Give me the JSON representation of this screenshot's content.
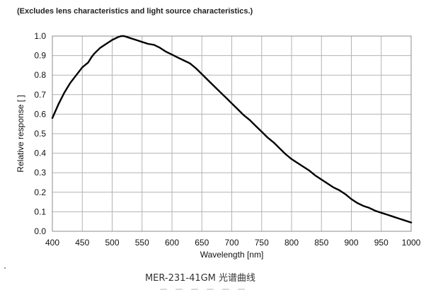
{
  "note": "(Excludes lens characteristics and light source characteristics.)",
  "caption": "MER-231-41GM 光谱曲线",
  "chart_data": {
    "type": "line",
    "title": "",
    "xlabel": "Wavelength [nm]",
    "ylabel": "Relative response [ ]",
    "xlim": [
      400,
      1000
    ],
    "ylim": [
      0,
      1.0
    ],
    "xticks": [
      400,
      450,
      500,
      550,
      600,
      650,
      700,
      750,
      800,
      850,
      900,
      950,
      1000
    ],
    "yticks": [
      "0.0",
      "0.1",
      "0.2",
      "0.3",
      "0.4",
      "0.5",
      "0.6",
      "0.7",
      "0.8",
      "0.9",
      "1.0"
    ],
    "grid": true,
    "series": [
      {
        "color": "#000000",
        "x": [
          400,
          410,
          420,
          430,
          440,
          450,
          460,
          465,
          470,
          480,
          490,
          500,
          510,
          515,
          520,
          530,
          540,
          550,
          560,
          570,
          580,
          590,
          600,
          610,
          620,
          630,
          640,
          650,
          660,
          670,
          680,
          690,
          700,
          710,
          720,
          730,
          740,
          750,
          760,
          770,
          780,
          790,
          800,
          810,
          820,
          830,
          840,
          850,
          860,
          870,
          880,
          890,
          900,
          910,
          920,
          930,
          940,
          950,
          960,
          970,
          980,
          990,
          1000
        ],
        "y": [
          0.58,
          0.65,
          0.71,
          0.76,
          0.8,
          0.84,
          0.865,
          0.89,
          0.91,
          0.94,
          0.96,
          0.98,
          0.995,
          1.0,
          1.0,
          0.99,
          0.98,
          0.97,
          0.96,
          0.955,
          0.94,
          0.92,
          0.905,
          0.89,
          0.875,
          0.86,
          0.835,
          0.805,
          0.775,
          0.745,
          0.715,
          0.685,
          0.655,
          0.625,
          0.595,
          0.57,
          0.54,
          0.51,
          0.48,
          0.455,
          0.425,
          0.395,
          0.37,
          0.35,
          0.33,
          0.31,
          0.285,
          0.265,
          0.245,
          0.225,
          0.21,
          0.19,
          0.165,
          0.145,
          0.13,
          0.12,
          0.105,
          0.095,
          0.085,
          0.075,
          0.065,
          0.055,
          0.045
        ]
      }
    ]
  }
}
